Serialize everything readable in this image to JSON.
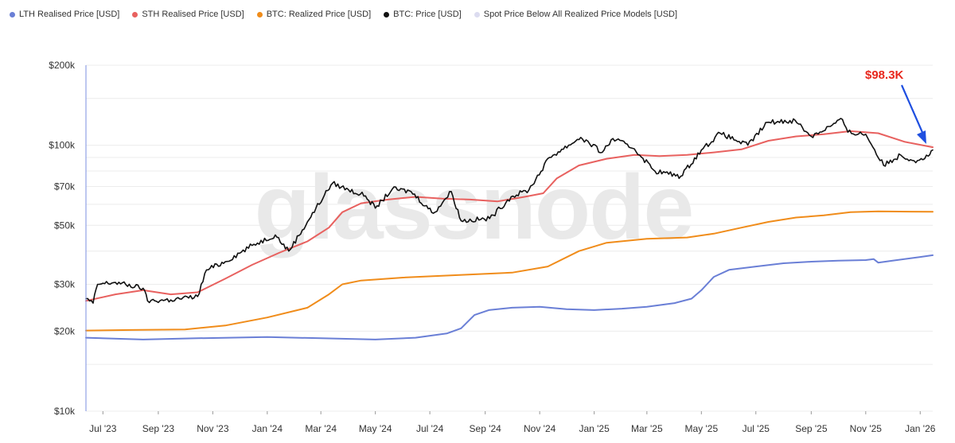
{
  "legend": [
    {
      "label": "LTH Realised Price [USD]",
      "color": "#6a7fd6"
    },
    {
      "label": "STH Realised Price [USD]",
      "color": "#e8615f"
    },
    {
      "label": "BTC: Realized Price [USD]",
      "color": "#f08c1a"
    },
    {
      "label": "BTC: Price [USD]",
      "color": "#111111"
    },
    {
      "label": "Spot Price Below All Realized Price Models [USD]",
      "color": "#dcdcf0"
    }
  ],
  "watermark": "glassnode",
  "annotation": {
    "text": "$98.3K",
    "color": "#e8281e",
    "arrow_color": "#1f4fe0"
  },
  "chart_data": {
    "type": "line",
    "y_scale": "log",
    "ylim": [
      10000,
      200000
    ],
    "y_ticks": [
      {
        "value": 200000,
        "label": "$200k"
      },
      {
        "value": 100000,
        "label": "$100k"
      },
      {
        "value": 70000,
        "label": "$70k"
      },
      {
        "value": 50000,
        "label": "$50k"
      },
      {
        "value": 30000,
        "label": "$30k"
      },
      {
        "value": 20000,
        "label": "$20k"
      },
      {
        "value": 10000,
        "label": "$10k"
      }
    ],
    "x_range": [
      "2023-06-12",
      "2026-01-15"
    ],
    "x_ticks": [
      {
        "date": "2023-07-01",
        "label": "Jul '23"
      },
      {
        "date": "2023-09-01",
        "label": "Sep '23"
      },
      {
        "date": "2023-11-01",
        "label": "Nov '23"
      },
      {
        "date": "2024-01-01",
        "label": "Jan '24"
      },
      {
        "date": "2024-03-01",
        "label": "Mar '24"
      },
      {
        "date": "2024-05-01",
        "label": "May '24"
      },
      {
        "date": "2024-07-01",
        "label": "Jul '24"
      },
      {
        "date": "2024-09-01",
        "label": "Sep '24"
      },
      {
        "date": "2024-11-01",
        "label": "Nov '24"
      },
      {
        "date": "2025-01-01",
        "label": "Jan '25"
      },
      {
        "date": "2025-03-01",
        "label": "Mar '25"
      },
      {
        "date": "2025-05-01",
        "label": "May '25"
      },
      {
        "date": "2025-07-01",
        "label": "Jul '25"
      },
      {
        "date": "2025-09-01",
        "label": "Sep '25"
      },
      {
        "date": "2025-11-01",
        "label": "Nov '25"
      },
      {
        "date": "2026-01-01",
        "label": "Jan '26"
      }
    ],
    "grid": true,
    "series": [
      {
        "name": "LTH Realised Price [USD]",
        "color": "#6a7fd6",
        "width": 2,
        "points": [
          [
            "2023-06-12",
            18900
          ],
          [
            "2023-08-15",
            18600
          ],
          [
            "2023-10-15",
            18800
          ],
          [
            "2024-01-01",
            19000
          ],
          [
            "2024-03-01",
            18800
          ],
          [
            "2024-05-01",
            18600
          ],
          [
            "2024-06-15",
            18900
          ],
          [
            "2024-07-20",
            19600
          ],
          [
            "2024-08-05",
            20500
          ],
          [
            "2024-08-20",
            23000
          ],
          [
            "2024-09-05",
            24000
          ],
          [
            "2024-10-01",
            24500
          ],
          [
            "2024-11-01",
            24700
          ],
          [
            "2024-12-01",
            24200
          ],
          [
            "2025-01-01",
            24000
          ],
          [
            "2025-02-01",
            24300
          ],
          [
            "2025-03-01",
            24700
          ],
          [
            "2025-04-01",
            25500
          ],
          [
            "2025-04-20",
            26500
          ],
          [
            "2025-05-01",
            28500
          ],
          [
            "2025-05-15",
            32000
          ],
          [
            "2025-06-01",
            34000
          ],
          [
            "2025-07-01",
            35000
          ],
          [
            "2025-08-01",
            36000
          ],
          [
            "2025-09-01",
            36500
          ],
          [
            "2025-10-01",
            36800
          ],
          [
            "2025-11-01",
            37000
          ],
          [
            "2025-11-10",
            37300
          ],
          [
            "2025-11-15",
            36200
          ],
          [
            "2025-12-01",
            36800
          ],
          [
            "2026-01-01",
            38000
          ],
          [
            "2026-01-15",
            38600
          ]
        ]
      },
      {
        "name": "STH Realised Price [USD]",
        "color": "#e8615f",
        "width": 2,
        "points": [
          [
            "2023-06-12",
            26000
          ],
          [
            "2023-07-15",
            27500
          ],
          [
            "2023-08-15",
            28500
          ],
          [
            "2023-09-15",
            27500
          ],
          [
            "2023-10-15",
            28000
          ],
          [
            "2023-11-15",
            31500
          ],
          [
            "2023-12-15",
            35500
          ],
          [
            "2024-01-15",
            39500
          ],
          [
            "2024-02-15",
            43500
          ],
          [
            "2024-03-10",
            49000
          ],
          [
            "2024-03-25",
            56000
          ],
          [
            "2024-04-15",
            60500
          ],
          [
            "2024-05-15",
            62500
          ],
          [
            "2024-06-15",
            64000
          ],
          [
            "2024-07-15",
            63000
          ],
          [
            "2024-08-15",
            62500
          ],
          [
            "2024-09-15",
            61500
          ],
          [
            "2024-10-15",
            64000
          ],
          [
            "2024-11-05",
            66000
          ],
          [
            "2024-11-20",
            75000
          ],
          [
            "2024-12-15",
            84000
          ],
          [
            "2025-01-15",
            89000
          ],
          [
            "2025-02-15",
            92000
          ],
          [
            "2025-03-15",
            91000
          ],
          [
            "2025-04-15",
            92000
          ],
          [
            "2025-05-15",
            94000
          ],
          [
            "2025-06-15",
            96500
          ],
          [
            "2025-07-15",
            104000
          ],
          [
            "2025-08-15",
            108000
          ],
          [
            "2025-09-15",
            110000
          ],
          [
            "2025-10-15",
            113000
          ],
          [
            "2025-11-15",
            111000
          ],
          [
            "2025-12-15",
            103000
          ],
          [
            "2026-01-15",
            98300
          ]
        ]
      },
      {
        "name": "BTC: Realized Price [USD]",
        "color": "#f08c1a",
        "width": 2,
        "points": [
          [
            "2023-06-12",
            20100
          ],
          [
            "2023-08-01",
            20200
          ],
          [
            "2023-10-01",
            20300
          ],
          [
            "2023-11-15",
            21000
          ],
          [
            "2024-01-01",
            22500
          ],
          [
            "2024-02-15",
            24500
          ],
          [
            "2024-03-10",
            27500
          ],
          [
            "2024-03-25",
            30000
          ],
          [
            "2024-04-15",
            31000
          ],
          [
            "2024-06-01",
            31800
          ],
          [
            "2024-08-01",
            32500
          ],
          [
            "2024-10-01",
            33200
          ],
          [
            "2024-11-10",
            35000
          ],
          [
            "2024-12-15",
            40000
          ],
          [
            "2025-01-15",
            43000
          ],
          [
            "2025-03-01",
            44500
          ],
          [
            "2025-04-15",
            45000
          ],
          [
            "2025-05-15",
            46500
          ],
          [
            "2025-06-15",
            49000
          ],
          [
            "2025-07-15",
            51500
          ],
          [
            "2025-08-15",
            53500
          ],
          [
            "2025-09-15",
            54500
          ],
          [
            "2025-10-15",
            56000
          ],
          [
            "2025-11-15",
            56400
          ],
          [
            "2026-01-15",
            56200
          ]
        ]
      },
      {
        "name": "BTC: Price [USD]",
        "color": "#111111",
        "width": 1.6,
        "noise": 0.022,
        "points": [
          [
            "2023-06-12",
            26500
          ],
          [
            "2023-06-20",
            25500
          ],
          [
            "2023-06-25",
            30000
          ],
          [
            "2023-07-15",
            30500
          ],
          [
            "2023-08-15",
            29000
          ],
          [
            "2023-08-20",
            26000
          ],
          [
            "2023-09-15",
            26200
          ],
          [
            "2023-10-15",
            27000
          ],
          [
            "2023-10-25",
            34000
          ],
          [
            "2023-11-15",
            36500
          ],
          [
            "2023-12-15",
            42000
          ],
          [
            "2024-01-10",
            46000
          ],
          [
            "2024-01-25",
            40000
          ],
          [
            "2024-02-15",
            51500
          ],
          [
            "2024-03-05",
            65000
          ],
          [
            "2024-03-14",
            72000
          ],
          [
            "2024-04-01",
            68000
          ],
          [
            "2024-04-20",
            64500
          ],
          [
            "2024-05-01",
            58000
          ],
          [
            "2024-05-20",
            68500
          ],
          [
            "2024-06-10",
            67000
          ],
          [
            "2024-07-05",
            55500
          ],
          [
            "2024-07-25",
            67000
          ],
          [
            "2024-08-05",
            52000
          ],
          [
            "2024-09-06",
            53000
          ],
          [
            "2024-09-30",
            64000
          ],
          [
            "2024-10-20",
            68000
          ],
          [
            "2024-11-12",
            90000
          ],
          [
            "2024-12-17",
            107000
          ],
          [
            "2025-01-10",
            94000
          ],
          [
            "2025-01-22",
            106000
          ],
          [
            "2025-02-15",
            97000
          ],
          [
            "2025-03-10",
            80000
          ],
          [
            "2025-04-08",
            76500
          ],
          [
            "2025-05-01",
            96000
          ],
          [
            "2025-05-22",
            111000
          ],
          [
            "2025-06-22",
            100000
          ],
          [
            "2025-07-14",
            122000
          ],
          [
            "2025-08-14",
            124000
          ],
          [
            "2025-09-01",
            108000
          ],
          [
            "2025-10-06",
            125000
          ],
          [
            "2025-10-12",
            112000
          ],
          [
            "2025-11-01",
            110000
          ],
          [
            "2025-11-21",
            84000
          ],
          [
            "2025-12-10",
            92000
          ],
          [
            "2025-12-25",
            87500
          ],
          [
            "2026-01-10",
            91000
          ],
          [
            "2026-01-15",
            96000
          ]
        ]
      }
    ]
  }
}
